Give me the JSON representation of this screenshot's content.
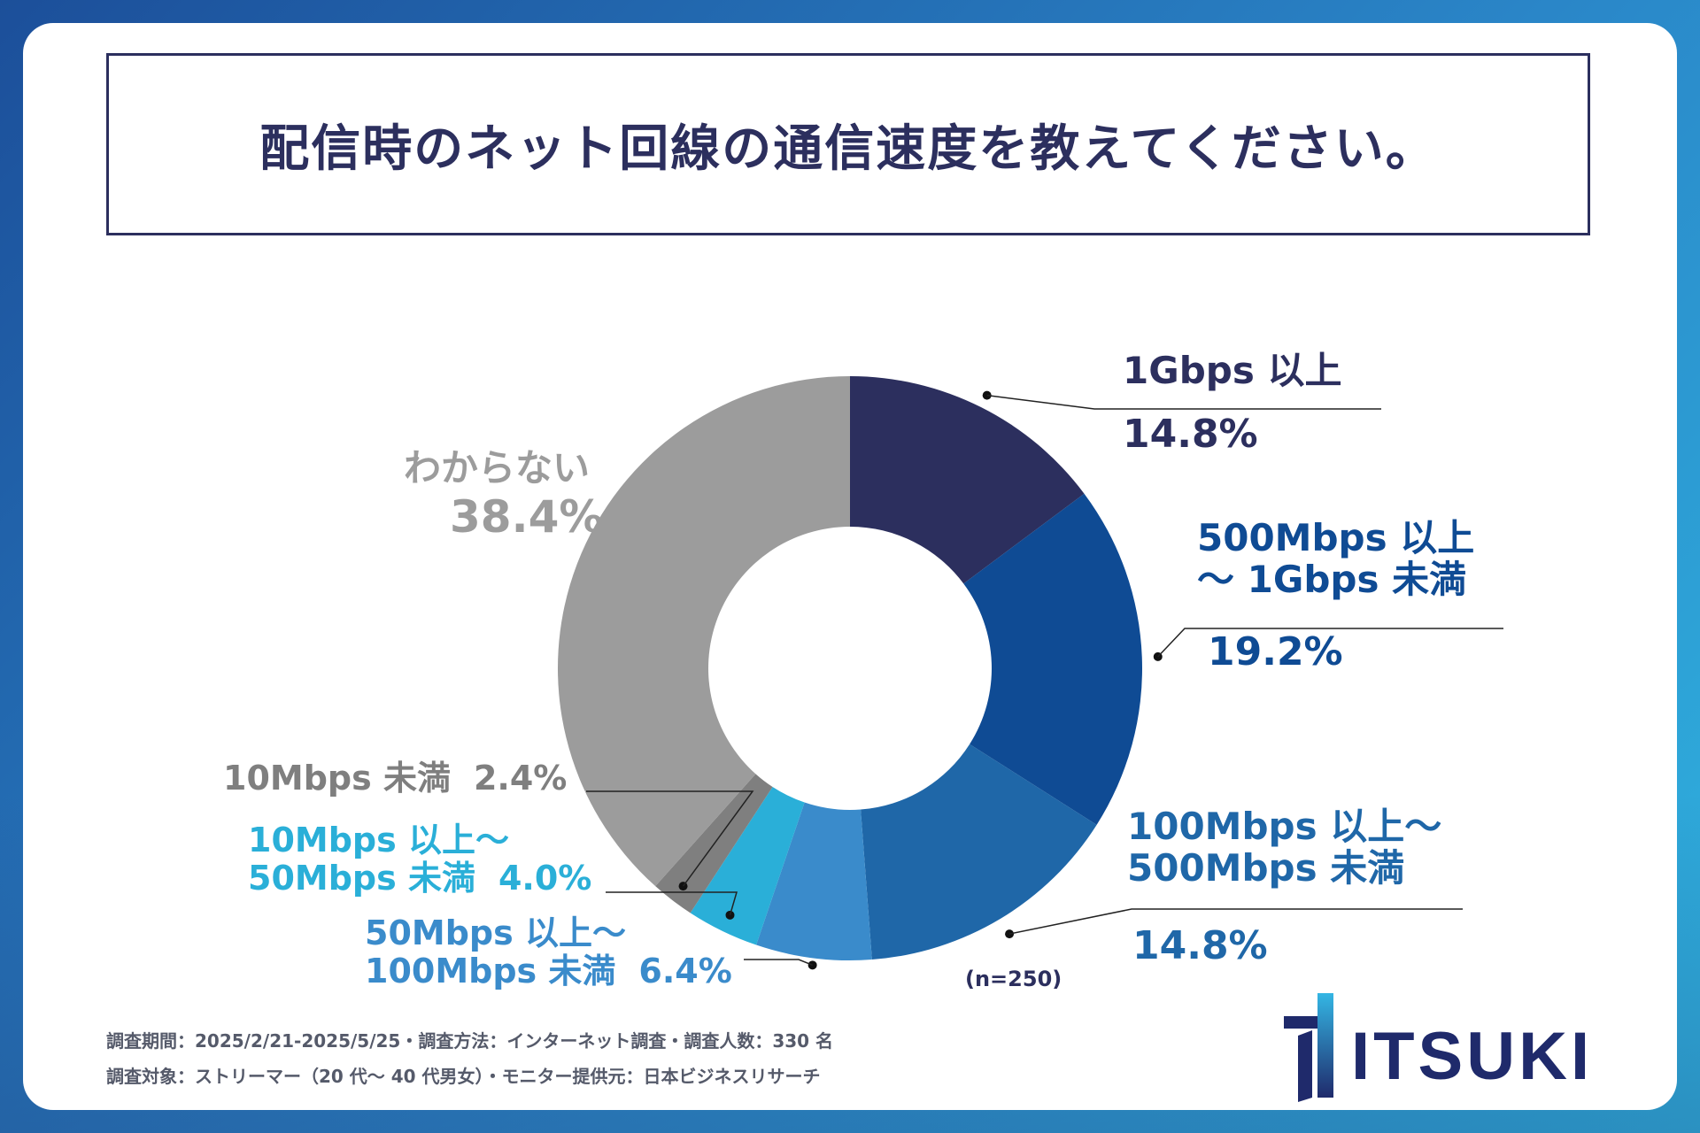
{
  "title": "配信時のネット回線の通信速度を教えてください。",
  "colors": {
    "title": "#2c2f5e",
    "s1": "#2c2f5e",
    "s2": "#0f4b94",
    "s3": "#1f67a8",
    "s4": "#3a8bcb",
    "s5": "#2aafd8",
    "s6": "#7f7f7f",
    "s7": "#9c9c9c"
  },
  "chart_data": {
    "type": "pie",
    "style": "donut",
    "title": "配信時のネット回線の通信速度を教えてください。",
    "sample_note": "(n=250)",
    "slices": [
      {
        "key": "s1",
        "label": "1Gbps 以上",
        "label_lines": [
          "1Gbps 以上"
        ],
        "value": 14.8,
        "pct": "14.8%"
      },
      {
        "key": "s2",
        "label": "500Mbps 以上〜 1Gbps 未満",
        "label_lines": [
          "500Mbps 以上",
          "〜 1Gbps 未満"
        ],
        "value": 19.2,
        "pct": "19.2%"
      },
      {
        "key": "s3",
        "label": "100Mbps 以上〜 500Mbps 未満",
        "label_lines": [
          "100Mbps 以上〜",
          "500Mbps 未満"
        ],
        "value": 14.8,
        "pct": "14.8%"
      },
      {
        "key": "s4",
        "label": "50Mbps 以上〜 100Mbps 未満",
        "label_lines": [
          "50Mbps 以上〜",
          "100Mbps 未満"
        ],
        "value": 6.4,
        "pct": "6.4%"
      },
      {
        "key": "s5",
        "label": "10Mbps 以上〜 50Mbps 未満",
        "label_lines": [
          "10Mbps 以上〜",
          "50Mbps 未満"
        ],
        "value": 4.0,
        "pct": "4.0%"
      },
      {
        "key": "s6",
        "label": "10Mbps 未満",
        "label_lines": [
          "10Mbps 未満"
        ],
        "value": 2.4,
        "pct": "2.4%"
      },
      {
        "key": "s7",
        "label": "わからない",
        "label_lines": [
          "わからない"
        ],
        "value": 38.4,
        "pct": "38.4%"
      }
    ]
  },
  "footer": {
    "line1": "調査期間：2025/2/21-2025/5/25・調査方法：インターネット調査・調査人数：330 名",
    "line2": "調査対象：ストリーマー（20 代〜 40 代男女）・モニター提供元：日本ビジネスリサーチ"
  },
  "logo": {
    "text": "ITSUKI"
  }
}
